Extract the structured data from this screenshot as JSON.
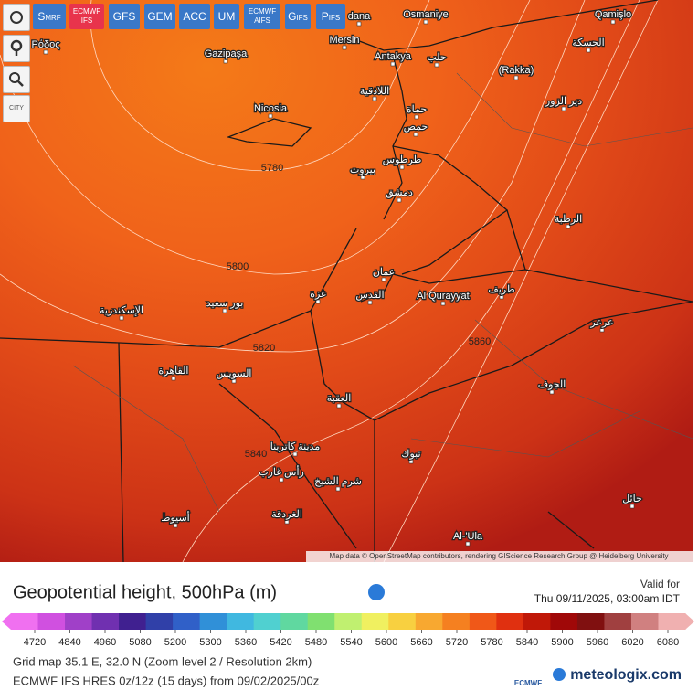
{
  "models": [
    {
      "main": "S",
      "sub": "MRF"
    },
    {
      "main": "ECMWF",
      "sub": "IFS"
    },
    {
      "main": "GFS"
    },
    {
      "main": "GEM"
    },
    {
      "main": "ACC"
    },
    {
      "main": "UM"
    },
    {
      "main": "ECMWF",
      "sub": "AIFS"
    },
    {
      "main": "G",
      "sub": "IFS"
    },
    {
      "main": "P",
      "sub": "IFS"
    }
  ],
  "city_button": "CITY",
  "map_labels": [
    "dana",
    "Osmaniye",
    "Mersin",
    "Gazipaşa",
    "Antakya",
    "Nicosia",
    "Qamişlo",
    "(Rakka)",
    "Ρόδος",
    "Al Qurayyat",
    "Al-'Ula",
    "بيروت",
    "دمشق",
    "عمان",
    "القاهرة",
    "السويس",
    "الإسكندرية",
    "اللاذقية",
    "حماة",
    "حمص",
    "حلب",
    "دير الزور",
    "الرطبة",
    "تبوك",
    "الجوف",
    "حائل",
    "العقبة",
    "غزة",
    "بور سعيد",
    "طريف",
    "عرعر",
    "أسيوط",
    "الغردقة",
    "شرم الشيخ",
    "رأس غارب",
    "مدينة كاترينا",
    "الحسكة",
    "القدس",
    "طرطوس"
  ],
  "contour_labels": [
    "5780",
    "5800",
    "5820",
    "5840",
    "5860"
  ],
  "attribution": "Map data © OpenStreetMap contributors, rendering GIScience Research Group @ Heidelberg University",
  "title": "Geopotential height, 500hPa (m)",
  "valid_label": "Valid for",
  "valid_time": "Thu 09/11/2025, 03:00am IDT",
  "colorbar": {
    "colors": [
      "#f070f0",
      "#d050e0",
      "#a040c8",
      "#7030b0",
      "#402090",
      "#3040a8",
      "#3060c8",
      "#3090d8",
      "#40b8e0",
      "#50d0d0",
      "#60d8a0",
      "#80e070",
      "#c0f070",
      "#f0f060",
      "#f8d040",
      "#f8a830",
      "#f58020",
      "#f05818",
      "#e03010",
      "#c01808",
      "#a00808",
      "#801010",
      "#a04040",
      "#d08080",
      "#f0b0b0"
    ],
    "ticks": [
      4720,
      4840,
      4960,
      5080,
      5200,
      5300,
      5360,
      5420,
      5480,
      5540,
      5600,
      5660,
      5720,
      5780,
      5840,
      5900,
      5960,
      6020,
      6080
    ]
  },
  "grid_info": "Grid map 35.1 E, 32.0 N (Zoom level 2 / Resolution 2km)",
  "run_info": "ECMWF IFS HRES 0z/12z (15 days) from 09/02/2025/00z",
  "logo_small": "ECMWF",
  "logo": "meteologix.com"
}
